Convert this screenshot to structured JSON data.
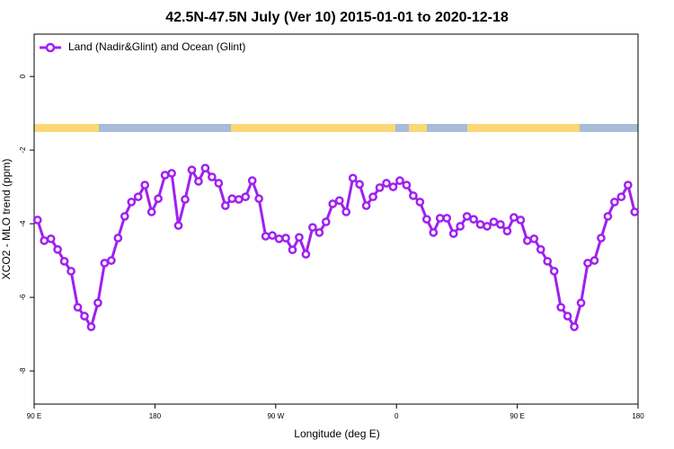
{
  "chart_data": {
    "type": "line",
    "title": "42.5N-47.5N July (Ver 10)   2015-01-01 to 2020-12-18",
    "x_label": "Longitude (deg E)",
    "y_label": "XCO2 - MLO trend (ppm)",
    "xlim": [
      90,
      540
    ],
    "xticks": [
      {
        "value": 90,
        "label": "90 E"
      },
      {
        "value": 180,
        "label": "180"
      },
      {
        "value": 270,
        "label": "90 W"
      },
      {
        "value": 360,
        "label": "0"
      },
      {
        "value": 450,
        "label": "90 E"
      },
      {
        "value": 540,
        "label": "180"
      }
    ],
    "ylim": [
      -8.9,
      1.15
    ],
    "yticks": [
      0,
      -2,
      -4,
      -6,
      -8
    ],
    "legend": "top-left",
    "x": [
      92.5,
      97.5,
      102.5,
      107.5,
      112.5,
      117.5,
      122.5,
      127.5,
      132.5,
      137.5,
      142.5,
      147.5,
      152.5,
      157.5,
      162.5,
      167.5,
      172.5,
      177.5,
      182.5,
      187.5,
      192.5,
      197.5,
      202.5,
      207.5,
      212.5,
      217.5,
      222.5,
      227.5,
      232.5,
      237.5,
      242.5,
      247.5,
      252.5,
      257.5,
      262.5,
      267.5,
      272.5,
      277.5,
      282.5,
      287.5,
      292.5,
      297.5,
      302.5,
      307.5,
      312.5,
      317.5,
      322.5,
      327.5,
      332.5,
      337.5,
      342.5,
      347.5,
      352.5,
      357.5,
      362.5,
      367.5,
      372.5,
      377.5,
      382.5,
      387.5,
      392.5,
      397.5,
      402.5,
      407.5,
      412.5,
      417.5,
      422.5,
      427.5,
      432.5,
      437.5,
      442.5,
      447.5,
      452.5,
      457.5,
      462.5,
      467.5,
      472.5,
      477.5,
      482.5,
      487.5,
      492.5,
      497.5,
      502.5,
      507.5,
      512.5,
      517.5,
      522.5,
      527.5,
      532.5,
      537.5
    ],
    "series": [
      {
        "name": "Land (Nadir&Glint) and Ocean (Glint)",
        "color": "#a020f0",
        "values": [
          -3.9,
          -4.46,
          -4.41,
          -4.7,
          -5.02,
          -5.29,
          -6.27,
          -6.51,
          -6.8,
          -6.15,
          -5.07,
          -5.0,
          -4.39,
          -3.8,
          -3.41,
          -3.27,
          -2.95,
          -3.68,
          -3.32,
          -2.68,
          -2.63,
          -4.05,
          -3.34,
          -2.54,
          -2.85,
          -2.49,
          -2.73,
          -2.9,
          -3.51,
          -3.32,
          -3.34,
          -3.27,
          -2.83,
          -3.32,
          -4.34,
          -4.32,
          -4.41,
          -4.39,
          -4.71,
          -4.37,
          -4.83,
          -4.1,
          -4.24,
          -3.95,
          -3.46,
          -3.37,
          -3.68,
          -2.76,
          -2.93,
          -3.51,
          -3.27,
          -3.02,
          -2.9,
          -3.0,
          -2.83,
          -2.95,
          -3.24,
          -3.41,
          -3.88,
          -4.24,
          -3.85,
          -3.85,
          -4.27,
          -4.07,
          -3.8,
          -3.88,
          -4.02,
          -4.07,
          -3.95,
          -4.02,
          -4.2,
          -3.83,
          -3.9,
          -4.46,
          -4.41,
          -4.7,
          -5.02,
          -5.29,
          -6.27,
          -6.51,
          -6.8,
          -6.15,
          -5.07,
          -5.0,
          -4.39,
          -3.8,
          -3.41,
          -3.27,
          -2.95,
          -3.68
        ]
      }
    ]
  }
}
